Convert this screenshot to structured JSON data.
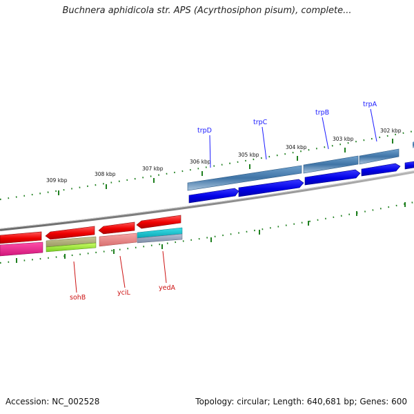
{
  "title": "Buchnera aphidicola str. APS (Acyrthosiphon pisum), complete...",
  "footer": {
    "accession": "Accession: NC_002528",
    "summary": "Topology: circular; Length: 640,681 bp; Genes: 600"
  },
  "scale_ticks": [
    "309 kbp",
    "308 kbp",
    "307 kbp",
    "306 kbp",
    "305 kbp",
    "304 kbp",
    "303 kbp",
    "302 kbp"
  ],
  "forward_genes": [
    "trpD",
    "trpC",
    "trpB",
    "trpA"
  ],
  "reverse_genes": [
    "sohB",
    "yciL",
    "yedA"
  ],
  "colors": {
    "forward_label": "#1a1aff",
    "reverse_label": "#cc1111",
    "tick": "#1e7f1e",
    "backbone": "#888888",
    "forward_track": "#4a80b0",
    "cds_blue": "#0a0ae6",
    "cds_red": "#ee1111"
  }
}
